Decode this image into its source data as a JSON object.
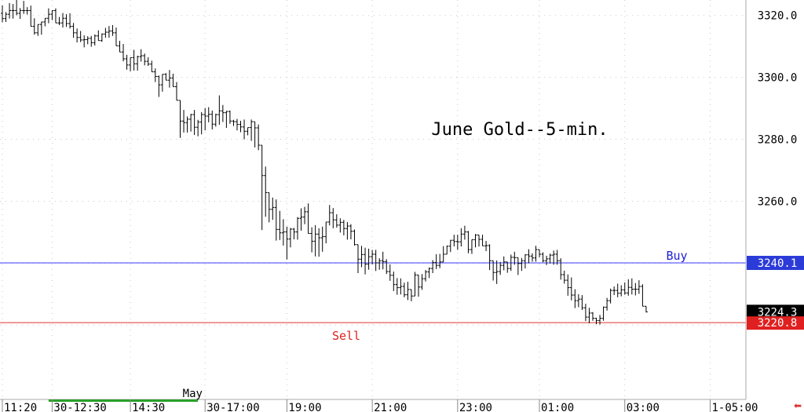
{
  "chart_data": {
    "type": "ohlc",
    "title": "June Gold--5-min.",
    "xlabel": "",
    "ylabel": "",
    "ylim": [
      3196,
      3325
    ],
    "y_ticks": [
      3220.0,
      3240.0,
      3260.0,
      3280.0,
      3300.0,
      3320.0
    ],
    "y_tick_labels": [
      "3220.0",
      "3240.0",
      "3260.0",
      "3280.0",
      "3300.0",
      "3320.0"
    ],
    "x_tick_labels": [
      "11:20",
      "30-12:30",
      "14:30",
      "30-17:00",
      "19:00",
      "21:00",
      "23:00",
      "01:00",
      "03:00",
      "1-05:00"
    ],
    "x_tick_index": [
      0,
      14,
      36,
      57,
      80,
      104,
      128,
      151,
      175,
      199
    ],
    "month_label": "May",
    "month_label_index": 56,
    "green_band_index": [
      13,
      55
    ],
    "grid": "vertical and horizontal dotted",
    "price_lines": [
      {
        "name": "Buy",
        "value": 3240.1,
        "color": "#3b3bff",
        "label_color": "#1f1fd0",
        "tag": "3240.1"
      },
      {
        "name": "Sell",
        "value": 3220.8,
        "color": "#e03030",
        "label_color": "#e02020",
        "tag": "3220.8"
      }
    ],
    "last_price": 3224.3,
    "last_price_tag": "3224.3",
    "bars": [
      [
        3320.7,
        3323.3,
        3317.8,
        3319.0
      ],
      [
        3319.0,
        3321.1,
        3317.9,
        3320.4
      ],
      [
        3320.4,
        3324.0,
        3319.0,
        3321.6
      ],
      [
        3321.6,
        3323.7,
        3319.0,
        3321.6
      ],
      [
        3321.6,
        3325.1,
        3320.1,
        3320.7
      ],
      [
        3320.7,
        3322.4,
        3318.9,
        3321.6
      ],
      [
        3321.6,
        3324.7,
        3320.5,
        3321.6
      ],
      [
        3321.6,
        3322.7,
        3320.3,
        3321.6
      ],
      [
        3321.6,
        3323.2,
        3317.6,
        3316.5
      ],
      [
        3316.5,
        3319.1,
        3313.8,
        3314.4
      ],
      [
        3314.4,
        3316.6,
        3313.4,
        3317.1
      ],
      [
        3317.1,
        3318.0,
        3313.8,
        3317.9
      ],
      [
        3317.9,
        3319.1,
        3316.5,
        3319.1
      ],
      [
        3319.1,
        3322.3,
        3317.5,
        3320.4
      ],
      [
        3320.4,
        3321.5,
        3318.5,
        3321.6
      ],
      [
        3321.6,
        3322.3,
        3318.9,
        3317.6
      ],
      [
        3317.6,
        3319.5,
        3316.9,
        3317.6
      ],
      [
        3317.6,
        3320.8,
        3316.1,
        3319.1
      ],
      [
        3319.1,
        3320.4,
        3316.3,
        3317.4
      ],
      [
        3317.4,
        3320.7,
        3315.8,
        3316.5
      ],
      [
        3316.5,
        3317.6,
        3312.8,
        3314.4
      ],
      [
        3314.4,
        3315.8,
        3311.3,
        3312.9
      ],
      [
        3312.9,
        3315.0,
        3311.4,
        3312.1
      ],
      [
        3312.1,
        3313.6,
        3309.7,
        3312.2
      ],
      [
        3312.2,
        3313.3,
        3310.7,
        3312.6
      ],
      [
        3312.6,
        3313.4,
        3309.9,
        3311.2
      ],
      [
        3311.2,
        3313.9,
        3310.3,
        3313.4
      ],
      [
        3313.4,
        3315.2,
        3311.9,
        3311.9
      ],
      [
        3311.9,
        3314.2,
        3311.5,
        3314.0
      ],
      [
        3314.0,
        3316.0,
        3312.8,
        3314.6
      ],
      [
        3314.6,
        3316.6,
        3312.8,
        3315.0
      ],
      [
        3315.0,
        3316.9,
        3313.4,
        3314.4
      ],
      [
        3314.4,
        3316.1,
        3310.7,
        3310.2
      ],
      [
        3310.2,
        3311.8,
        3308.6,
        3308.2
      ],
      [
        3308.2,
        3310.8,
        3305.2,
        3306.0
      ],
      [
        3306.0,
        3307.3,
        3302.5,
        3304.0
      ],
      [
        3304.0,
        3305.2,
        3302.0,
        3306.4
      ],
      [
        3306.4,
        3308.9,
        3302.2,
        3304.4
      ],
      [
        3304.4,
        3307.0,
        3302.2,
        3306.7
      ],
      [
        3306.7,
        3309.1,
        3305.1,
        3307.0
      ],
      [
        3307.0,
        3307.7,
        3303.9,
        3305.2
      ],
      [
        3305.2,
        3306.5,
        3303.7,
        3304.3
      ],
      [
        3304.3,
        3305.4,
        3302.1,
        3301.8
      ],
      [
        3301.8,
        3302.9,
        3298.5,
        3300.3
      ],
      [
        3300.3,
        3300.6,
        3293.7,
        3297.6
      ],
      [
        3297.6,
        3298.7,
        3295.4,
        3301.0
      ],
      [
        3301.0,
        3301.4,
        3299.2,
        3299.1
      ],
      [
        3299.1,
        3302.4,
        3296.7,
        3299.8
      ],
      [
        3299.8,
        3301.2,
        3297.2,
        3297.0
      ],
      [
        3297.0,
        3298.5,
        3292.6,
        3292.6
      ],
      [
        3292.6,
        3288.0,
        3280.5,
        3285.9
      ],
      [
        3285.9,
        3289.5,
        3282.2,
        3285.4
      ],
      [
        3285.4,
        3287.4,
        3282.2,
        3286.5
      ],
      [
        3286.5,
        3288.2,
        3282.5,
        3288.0
      ],
      [
        3288.0,
        3289.5,
        3281.4,
        3283.9
      ],
      [
        3283.9,
        3286.3,
        3281.0,
        3285.6
      ],
      [
        3285.6,
        3288.8,
        3281.6,
        3288.0
      ],
      [
        3288.0,
        3290.1,
        3282.9,
        3287.5
      ],
      [
        3287.5,
        3290.4,
        3285.5,
        3288.1
      ],
      [
        3288.1,
        3289.3,
        3283.2,
        3284.9
      ],
      [
        3284.9,
        3288.3,
        3284.1,
        3288.0
      ],
      [
        3288.0,
        3294.2,
        3284.7,
        3289.2
      ],
      [
        3289.2,
        3291.1,
        3285.6,
        3288.6
      ],
      [
        3288.6,
        3289.2,
        3283.7,
        3289.0
      ],
      [
        3289.0,
        3289.3,
        3285.0,
        3285.9
      ],
      [
        3285.9,
        3286.3,
        3284.3,
        3285.7
      ],
      [
        3285.7,
        3286.6,
        3282.9,
        3284.8
      ],
      [
        3284.8,
        3286.0,
        3282.3,
        3284.0
      ],
      [
        3284.0,
        3286.4,
        3280.0,
        3282.6
      ],
      [
        3282.6,
        3282.9,
        3281.3,
        3283.8
      ],
      [
        3283.8,
        3286.4,
        3279.5,
        3285.7
      ],
      [
        3285.7,
        3285.6,
        3277.4,
        3283.7
      ],
      [
        3283.7,
        3284.8,
        3276.5,
        3278.1
      ],
      [
        3278.1,
        3276.3,
        3250.7,
        3268.3
      ],
      [
        3268.3,
        3271.2,
        3255.0,
        3262.8
      ],
      [
        3262.8,
        3262.5,
        3253.2,
        3257.4
      ],
      [
        3257.4,
        3261.2,
        3254.0,
        3258.0
      ],
      [
        3258.0,
        3260.6,
        3247.3,
        3250.9
      ],
      [
        3250.9,
        3256.9,
        3247.5,
        3249.8
      ],
      [
        3249.8,
        3254.2,
        3245.7,
        3250.1
      ],
      [
        3250.1,
        3251.8,
        3241.2,
        3247.8
      ],
      [
        3247.8,
        3251.4,
        3245.1,
        3251.0
      ],
      [
        3251.0,
        3251.4,
        3247.7,
        3250.1
      ],
      [
        3250.1,
        3254.9,
        3247.6,
        3254.5
      ],
      [
        3254.5,
        3257.7,
        3250.5,
        3254.9
      ],
      [
        3254.9,
        3258.2,
        3252.6,
        3256.6
      ],
      [
        3256.6,
        3259.3,
        3249.7,
        3249.6
      ],
      [
        3249.6,
        3251.6,
        3243.5,
        3247.1
      ],
      [
        3247.1,
        3252.3,
        3242.2,
        3249.4
      ],
      [
        3249.4,
        3251.3,
        3242.1,
        3248.2
      ],
      [
        3248.2,
        3251.8,
        3243.7,
        3248.6
      ],
      [
        3248.6,
        3251.4,
        3246.4,
        3253.3
      ],
      [
        3253.3,
        3258.8,
        3252.2,
        3256.3
      ],
      [
        3256.3,
        3257.8,
        3251.3,
        3254.0
      ],
      [
        3254.0,
        3255.8,
        3251.5,
        3252.3
      ],
      [
        3252.3,
        3254.5,
        3249.9,
        3253.2
      ],
      [
        3253.2,
        3254.0,
        3249.0,
        3251.2
      ],
      [
        3251.2,
        3253.3,
        3247.6,
        3252.0
      ],
      [
        3252.0,
        3252.6,
        3247.7,
        3250.3
      ],
      [
        3250.3,
        3250.9,
        3245.7,
        3246.0
      ],
      [
        3246.0,
        3245.5,
        3236.8,
        3241.3
      ],
      [
        3241.3,
        3245.6,
        3238.7,
        3242.8
      ],
      [
        3242.8,
        3245.0,
        3236.4,
        3239.7
      ],
      [
        3239.7,
        3244.7,
        3237.9,
        3242.1
      ],
      [
        3242.1,
        3244.3,
        3239.6,
        3242.9
      ],
      [
        3242.9,
        3244.3,
        3237.5,
        3240.1
      ],
      [
        3240.1,
        3241.6,
        3237.9,
        3240.8
      ],
      [
        3240.8,
        3243.7,
        3238.0,
        3240.5
      ],
      [
        3240.5,
        3241.3,
        3236.5,
        3237.3
      ],
      [
        3237.3,
        3239.6,
        3234.3,
        3236.1
      ],
      [
        3236.1,
        3237.3,
        3231.0,
        3233.1
      ],
      [
        3233.1,
        3235.2,
        3229.8,
        3232.1
      ],
      [
        3232.1,
        3235.1,
        3229.9,
        3232.5
      ],
      [
        3232.5,
        3233.7,
        3229.0,
        3229.8
      ],
      [
        3229.8,
        3234.0,
        3228.1,
        3231.5
      ],
      [
        3231.5,
        3231.4,
        3227.7,
        3229.4
      ],
      [
        3229.4,
        3237.2,
        3233.5,
        3236.2
      ],
      [
        3236.2,
        3236.0,
        3229.2,
        3232.3
      ],
      [
        3232.3,
        3236.5,
        3231.4,
        3235.0
      ],
      [
        3235.0,
        3237.8,
        3234.1,
        3237.2
      ],
      [
        3237.2,
        3238.6,
        3235.2,
        3238.3
      ],
      [
        3238.3,
        3241.0,
        3236.8,
        3240.2
      ],
      [
        3240.2,
        3242.9,
        3238.1,
        3239.3
      ],
      [
        3239.3,
        3243.0,
        3238.4,
        3240.4
      ],
      [
        3240.4,
        3245.5,
        3241.1,
        3242.9
      ],
      [
        3242.9,
        3245.7,
        3243.5,
        3245.5
      ],
      [
        3245.5,
        3247.5,
        3243.6,
        3247.4
      ],
      [
        3247.4,
        3249.2,
        3245.4,
        3247.0
      ],
      [
        3247.0,
        3249.2,
        3244.3,
        3246.9
      ],
      [
        3246.9,
        3251.3,
        3245.4,
        3249.4
      ],
      [
        3249.4,
        3252.1,
        3247.6,
        3250.1
      ],
      [
        3250.1,
        3250.4,
        3243.2,
        3244.4
      ],
      [
        3244.4,
        3247.3,
        3243.0,
        3247.6
      ],
      [
        3247.6,
        3249.4,
        3245.1,
        3249.1
      ],
      [
        3249.1,
        3248.7,
        3245.4,
        3247.7
      ],
      [
        3247.7,
        3249.2,
        3246.0,
        3245.6
      ],
      [
        3245.6,
        3247.2,
        3243.9,
        3245.7
      ],
      [
        3245.7,
        3246.1,
        3237.8,
        3240.8
      ],
      [
        3240.8,
        3240.7,
        3234.4,
        3237.0
      ],
      [
        3237.0,
        3240.9,
        3233.3,
        3237.3
      ],
      [
        3237.3,
        3240.4,
        3236.2,
        3239.3
      ],
      [
        3239.3,
        3242.2,
        3237.7,
        3240.4
      ],
      [
        3240.4,
        3239.9,
        3236.9,
        3238.3
      ],
      [
        3238.3,
        3242.8,
        3237.5,
        3241.9
      ],
      [
        3241.9,
        3243.7,
        3239.5,
        3241.8
      ],
      [
        3241.8,
        3241.8,
        3236.2,
        3239.9
      ],
      [
        3239.9,
        3241.7,
        3237.5,
        3240.8
      ],
      [
        3240.8,
        3242.9,
        3238.3,
        3242.7
      ],
      [
        3242.7,
        3244.5,
        3240.0,
        3242.3
      ],
      [
        3242.3,
        3243.2,
        3240.5,
        3241.7
      ],
      [
        3241.7,
        3245.6,
        3240.5,
        3244.4
      ],
      [
        3244.4,
        3244.4,
        3241.9,
        3242.9
      ],
      [
        3242.9,
        3243.5,
        3240.3,
        3240.8
      ],
      [
        3240.8,
        3242.4,
        3239.4,
        3241.4
      ],
      [
        3241.4,
        3243.1,
        3239.9,
        3242.6
      ],
      [
        3242.6,
        3244.1,
        3239.5,
        3242.9
      ],
      [
        3242.9,
        3244.3,
        3239.5,
        3240.8
      ],
      [
        3240.8,
        3241.6,
        3234.7,
        3236.3
      ],
      [
        3236.3,
        3237.6,
        3233.4,
        3234.5
      ],
      [
        3234.5,
        3236.4,
        3229.5,
        3232.1
      ],
      [
        3232.1,
        3235.4,
        3228.0,
        3229.7
      ],
      [
        3229.7,
        3231.6,
        3225.5,
        3227.9
      ],
      [
        3227.9,
        3230.0,
        3225.8,
        3228.4
      ],
      [
        3228.4,
        3229.7,
        3224.9,
        3225.6
      ],
      [
        3225.6,
        3226.9,
        3221.3,
        3222.6
      ],
      [
        3222.6,
        3225.6,
        3220.6,
        3223.9
      ],
      [
        3223.9,
        3224.2,
        3221.4,
        3222.2
      ],
      [
        3222.2,
        3222.4,
        3220.3,
        3221.5
      ],
      [
        3221.5,
        3223.3,
        3220.2,
        3222.2
      ],
      [
        3222.2,
        3226.0,
        3221.4,
        3225.8
      ],
      [
        3225.8,
        3228.8,
        3224.7,
        3227.9
      ],
      [
        3227.9,
        3231.8,
        3227.0,
        3231.2
      ],
      [
        3231.2,
        3232.5,
        3229.7,
        3231.2
      ],
      [
        3231.2,
        3233.4,
        3229.0,
        3230.3
      ],
      [
        3230.3,
        3232.9,
        3229.3,
        3231.4
      ],
      [
        3231.4,
        3233.8,
        3229.8,
        3230.4
      ],
      [
        3230.4,
        3234.8,
        3229.5,
        3232.2
      ],
      [
        3232.2,
        3235.1,
        3229.9,
        3231.6
      ],
      [
        3231.6,
        3233.6,
        3229.6,
        3231.6
      ],
      [
        3231.6,
        3234.5,
        3230.1,
        3232.5
      ],
      [
        3232.5,
        3233.2,
        3229.5,
        3226.1
      ],
      [
        3226.1,
        3225.8,
        3224.1,
        3224.3
      ]
    ]
  }
}
